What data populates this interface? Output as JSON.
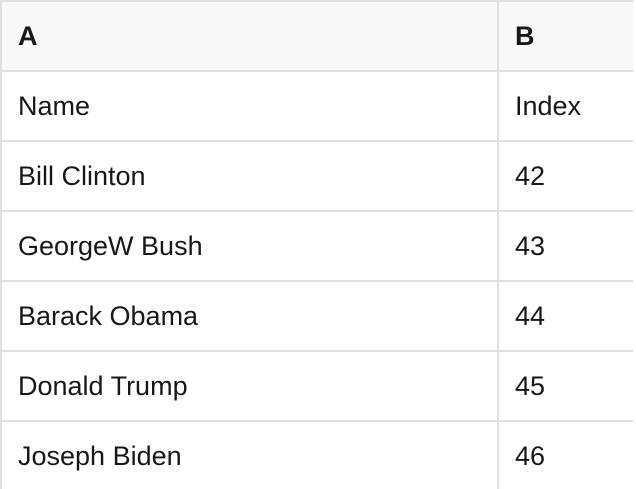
{
  "table": {
    "column_headers": [
      "A",
      "B"
    ],
    "rows": [
      [
        "Name",
        "Index"
      ],
      [
        "Bill Clinton",
        "42"
      ],
      [
        "GeorgeW Bush",
        "43"
      ],
      [
        "Barack Obama",
        "44"
      ],
      [
        "Donald Trump",
        "45"
      ],
      [
        "Joseph Biden",
        "46"
      ]
    ]
  },
  "colors": {
    "header_bg": "#f8f8f8",
    "cell_bg": "#ffffff",
    "border": "#e0e0e0",
    "text": "#181818"
  }
}
